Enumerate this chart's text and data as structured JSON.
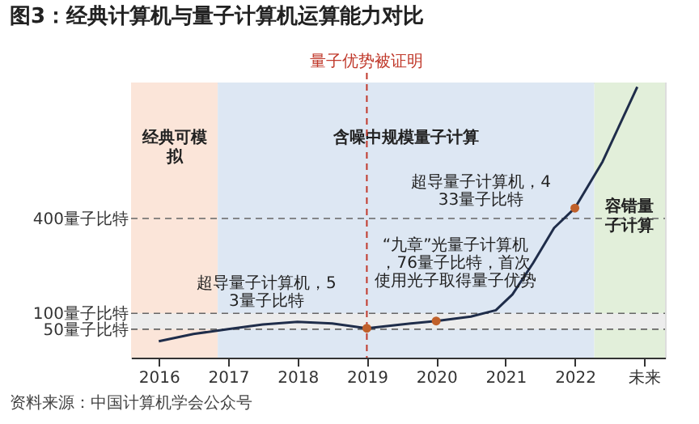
{
  "chart_data": {
    "type": "line",
    "title": "图3：经典计算机与量子计算机运算能力对比",
    "x": [
      2016.0,
      2016.5,
      2017.0,
      2017.5,
      2018.0,
      2018.5,
      2019.0,
      2019.5,
      2020.0,
      2020.5,
      2020.86,
      2021.1,
      2021.4,
      2021.7,
      2022.0,
      2022.4,
      2022.9
    ],
    "series": [
      {
        "color": "#1f2d4a",
        "values": [
          12,
          35,
          50,
          65,
          73,
          68,
          53,
          65,
          76,
          90,
          110,
          160,
          260,
          370,
          433,
          580,
          816
        ]
      },
      {
        "type": "scatter",
        "color": "#c0602a",
        "x": [
          2019,
          2020,
          2022
        ],
        "values": [
          53,
          76,
          433
        ],
        "marker": "circle"
      }
    ],
    "xlim": [
      2015.6,
      2023.3
    ],
    "xticks": [
      2016,
      2017,
      2018,
      2019,
      2020,
      2021,
      2022,
      {
        "value": 2023,
        "label": "未来"
      }
    ],
    "ylim": [
      -40,
      830
    ],
    "yticks": [
      {
        "value": 50,
        "label": "50量子比特"
      },
      {
        "value": 100,
        "label": "100量子比特"
      },
      {
        "value": 400,
        "label": "400量子比特"
      }
    ],
    "marker": "none",
    "line_style": "solid",
    "grid": false,
    "bands": [
      {
        "axis": "x",
        "from": 2015.6,
        "to": 2016.85,
        "label": "经典可模拟",
        "color": "#fbe5d9"
      },
      {
        "axis": "x",
        "from": 2016.85,
        "to": 2022.28,
        "label": "含噪中规模量子计算",
        "color": "#dde7f3"
      },
      {
        "axis": "x",
        "from": 2022.28,
        "to": 2023.3,
        "label": "容错量子计算",
        "color": "#e2efda"
      },
      {
        "axis": "y",
        "from": 50,
        "to": 100,
        "color": "#ececec"
      }
    ],
    "ref_lines": [
      {
        "axis": "y",
        "value": 400,
        "color": "#666666",
        "line_style": "dashed"
      },
      {
        "axis": "y",
        "value": 100,
        "color": "#666666",
        "line_style": "dashed"
      },
      {
        "axis": "y",
        "value": 50,
        "color": "#666666",
        "line_style": "dashed"
      },
      {
        "axis": "x",
        "value": 2019,
        "label": "量子优势被证明",
        "color": "#c0392b",
        "line_style": "dashed"
      }
    ],
    "annotations": [
      {
        "text": "超导量子计算机，53量子比特",
        "x": 2019,
        "y": 53
      },
      {
        "text": "“九章”光量子计算机，76量子比特，首次使用光子取得量子优势",
        "x": 2020,
        "y": 76
      },
      {
        "text": "超导量子计算机，433量子比特",
        "x": 2022,
        "y": 433
      },
      "资料来源：中国计算机学会公众号"
    ]
  }
}
